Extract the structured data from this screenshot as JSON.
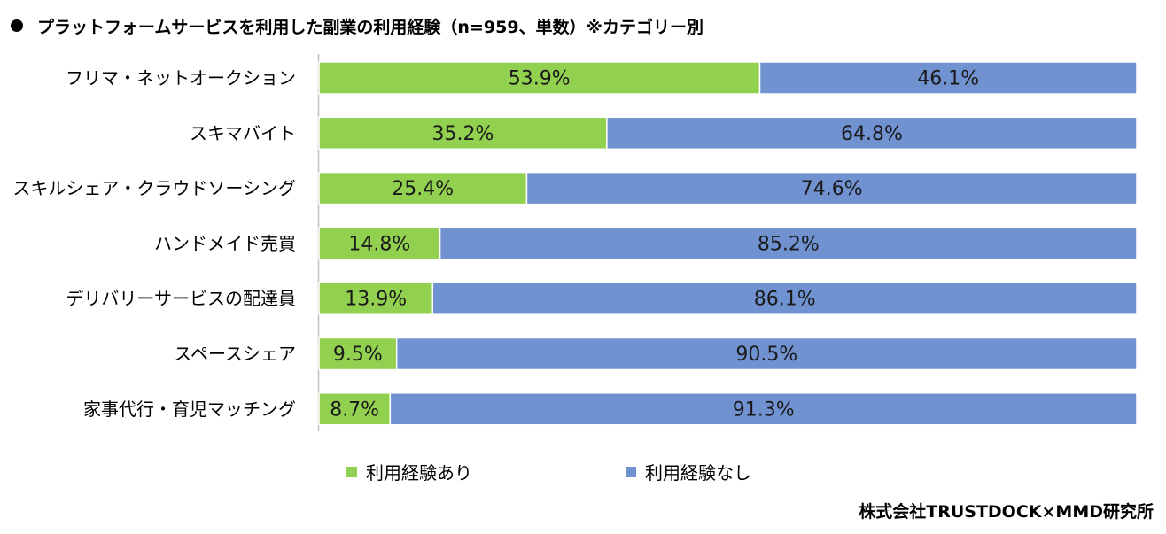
{
  "title": "プラットフォームサービスを利用した副業の利用経験（n=959、単数）※カテゴリー別",
  "source": "株式会社TRUSTDOCK×MMD研究所",
  "colors": {
    "yes": "#92d050",
    "no": "#7092d1",
    "axis": "#bfbfbf"
  },
  "chart_data": {
    "type": "bar",
    "orientation": "horizontal",
    "stacked": true,
    "percent": true,
    "categories": [
      "フリマ・ネットオークション",
      "スキマバイト",
      "スキルシェア・クラウドソーシング",
      "ハンドメイド売買",
      "デリバリーサービスの配達員",
      "スペースシェア",
      "家事代行・育児マッチング"
    ],
    "series": [
      {
        "name": "利用経験あり",
        "values": [
          53.9,
          35.2,
          25.4,
          14.8,
          13.9,
          9.5,
          8.7
        ],
        "labels": [
          "53.9%",
          "35.2%",
          "25.4%",
          "14.8%",
          "13.9%",
          "9.5%",
          "8.7%"
        ]
      },
      {
        "name": "利用経験なし",
        "values": [
          46.1,
          64.8,
          74.6,
          85.2,
          86.1,
          90.5,
          91.3
        ],
        "labels": [
          "46.1%",
          "64.8%",
          "74.6%",
          "85.2%",
          "86.1%",
          "90.5%",
          "91.3%"
        ]
      }
    ],
    "xlim": [
      0,
      100
    ],
    "legend": "bottom",
    "grid": false
  }
}
